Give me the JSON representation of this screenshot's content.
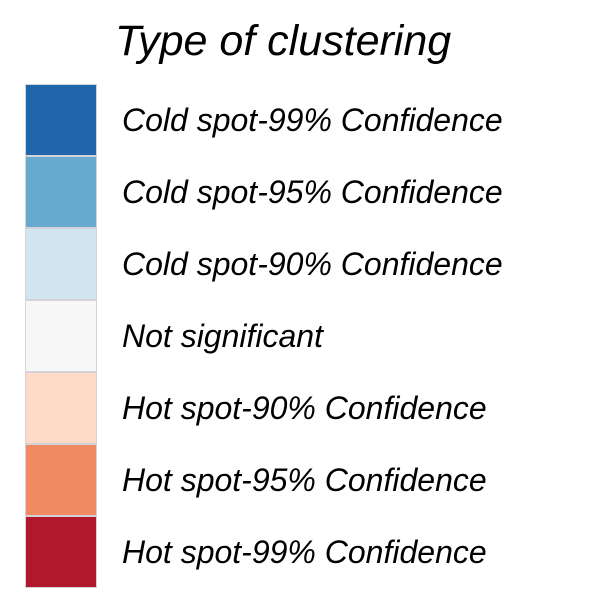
{
  "legend": {
    "title": "Type of clustering",
    "items": [
      {
        "label": "Cold spot-99% Confidence",
        "color": "#2166ac"
      },
      {
        "label": "Cold spot-95% Confidence",
        "color": "#67a9cf"
      },
      {
        "label": "Cold spot-90% Confidence",
        "color": "#d1e5f0"
      },
      {
        "label": "Not significant",
        "color": "#f7f7f7"
      },
      {
        "label": "Hot spot-90% Confidence",
        "color": "#fddbc7"
      },
      {
        "label": "Hot spot-95% Confidence",
        "color": "#ef8a62"
      },
      {
        "label": "Hot spot-99% Confidence",
        "color": "#b2182b"
      }
    ]
  }
}
